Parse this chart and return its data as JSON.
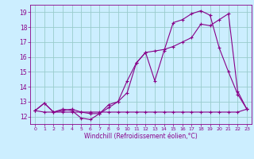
{
  "xlabel": "Windchill (Refroidissement éolien,°C)",
  "bg_color": "#cceeff",
  "line_color": "#880088",
  "grid_color": "#99cccc",
  "xlim": [
    -0.5,
    23.5
  ],
  "ylim": [
    11.5,
    19.5
  ],
  "xticks": [
    0,
    1,
    2,
    3,
    4,
    5,
    6,
    7,
    8,
    9,
    10,
    11,
    12,
    13,
    14,
    15,
    16,
    17,
    18,
    19,
    20,
    21,
    22,
    23
  ],
  "yticks": [
    12,
    13,
    14,
    15,
    16,
    17,
    18,
    19
  ],
  "line1_x": [
    0,
    1,
    2,
    3,
    4,
    5,
    6,
    7,
    8,
    9,
    10,
    11,
    12,
    13,
    14,
    15,
    16,
    17,
    18,
    19,
    20,
    21,
    22,
    23
  ],
  "line1_y": [
    12.4,
    12.9,
    12.3,
    12.5,
    12.4,
    11.9,
    11.8,
    12.2,
    12.8,
    13.0,
    13.6,
    15.6,
    16.3,
    14.4,
    16.4,
    18.3,
    18.5,
    18.9,
    19.1,
    18.8,
    16.6,
    15.0,
    13.5,
    12.5
  ],
  "line2_x": [
    0,
    1,
    2,
    3,
    4,
    5,
    6,
    7,
    8,
    9,
    10,
    11,
    12,
    13,
    14,
    15,
    16,
    17,
    18,
    19,
    20,
    21,
    22,
    23
  ],
  "line2_y": [
    12.4,
    12.3,
    12.3,
    12.3,
    12.3,
    12.3,
    12.3,
    12.3,
    12.3,
    12.3,
    12.3,
    12.3,
    12.3,
    12.3,
    12.3,
    12.3,
    12.3,
    12.3,
    12.3,
    12.3,
    12.3,
    12.3,
    12.3,
    12.5
  ],
  "line3_x": [
    0,
    1,
    2,
    3,
    4,
    5,
    6,
    7,
    8,
    9,
    10,
    11,
    12,
    13,
    14,
    15,
    16,
    17,
    18,
    19,
    20,
    21,
    22,
    23
  ],
  "line3_y": [
    12.4,
    12.9,
    12.3,
    12.4,
    12.5,
    12.3,
    12.2,
    12.2,
    12.6,
    13.0,
    14.4,
    15.6,
    16.3,
    16.4,
    16.5,
    16.7,
    17.0,
    17.3,
    18.2,
    18.1,
    18.5,
    18.9,
    13.7,
    12.5
  ]
}
